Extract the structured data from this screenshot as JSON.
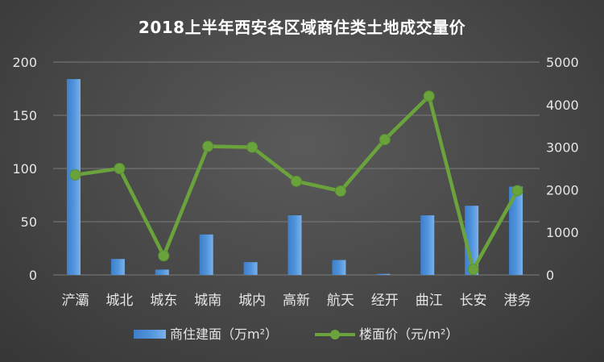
{
  "chart_data": {
    "type": "bar+line",
    "title": "2018上半年西安各区域商住类土地成交量价",
    "categories": [
      "浐灞",
      "城北",
      "城东",
      "城南",
      "城内",
      "高新",
      "航天",
      "经开",
      "曲江",
      "长安",
      "港务"
    ],
    "series": [
      {
        "name": "商住建面（万m²）",
        "type": "bar",
        "axis": "left",
        "color": "#4f93dc",
        "values": [
          184,
          15,
          5,
          38,
          12,
          56,
          14,
          1,
          56,
          65,
          83
        ]
      },
      {
        "name": "楼面价（元/m²）",
        "type": "line",
        "axis": "right",
        "color": "#6aa33c",
        "values": [
          2350,
          2500,
          450,
          3020,
          3000,
          2200,
          1970,
          3180,
          4200,
          130,
          1980
        ]
      }
    ],
    "y_left": {
      "min": 0,
      "max": 200,
      "ticks": [
        "0",
        "50",
        "100",
        "150",
        "200"
      ]
    },
    "y_right": {
      "min": 0,
      "max": 5000,
      "ticks": [
        "0",
        "1000",
        "2000",
        "3000",
        "4000",
        "5000"
      ]
    },
    "grid": true,
    "legend_position": "bottom"
  }
}
